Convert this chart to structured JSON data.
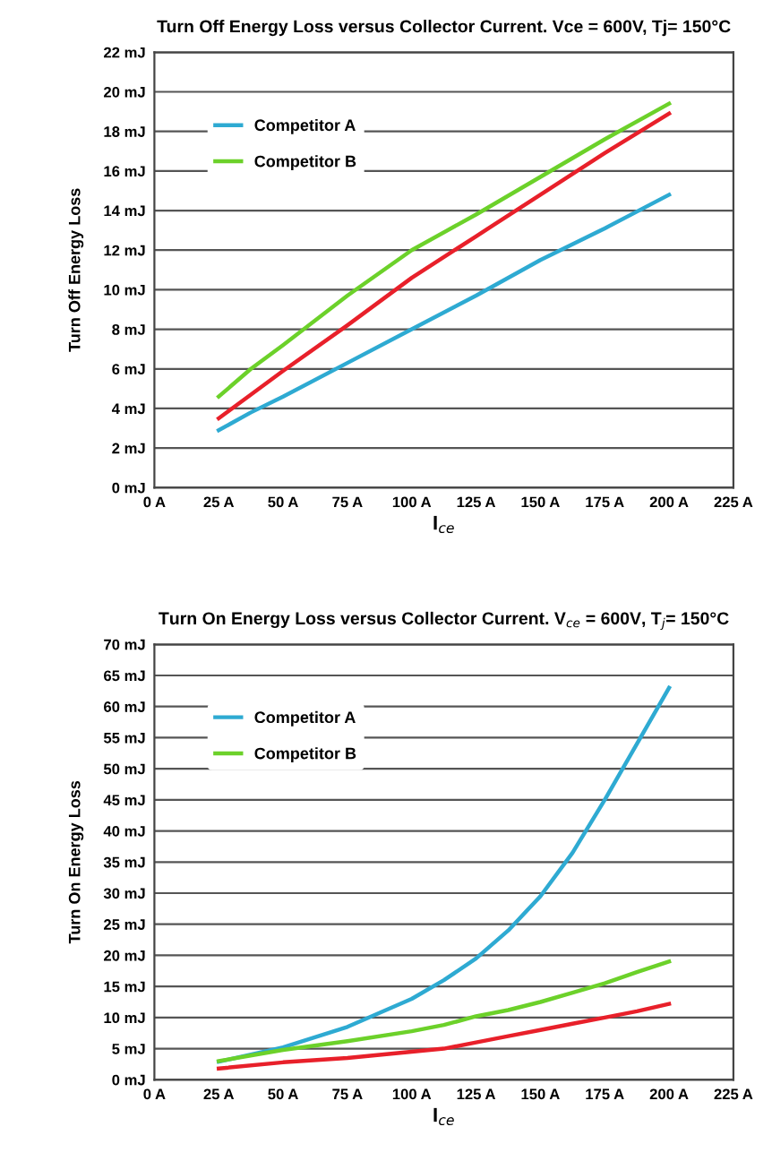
{
  "chart_data": [
    {
      "type": "line",
      "title": "Turn Off Energy Loss versus Collector Current. Vce = 600V, Tj= 150°C",
      "xlabel": "I$_{ce}$",
      "ylabel": "Turn Off Energy Loss",
      "x": [
        25,
        37.5,
        50,
        75,
        100,
        125,
        150,
        175,
        200
      ],
      "series": [
        {
          "color": "#e8202a",
          "values": [
            3.5,
            4.7,
            5.9,
            8.2,
            10.6,
            12.7,
            14.8,
            16.9,
            18.9
          ]
        },
        {
          "name": "Competitor A",
          "color": "#2eaad2",
          "values": [
            2.9,
            3.8,
            4.6,
            6.3,
            8.0,
            9.7,
            11.5,
            13.1,
            14.8
          ]
        },
        {
          "name": "Competitor B",
          "color": "#6cd12a",
          "values": [
            4.6,
            6.0,
            7.2,
            9.7,
            12.0,
            13.8,
            15.7,
            17.6,
            19.4
          ]
        }
      ],
      "xlim": [
        0,
        225
      ],
      "xticks": [
        {
          "value": 0,
          "label": "0 A"
        },
        {
          "value": 25,
          "label": "25 A"
        },
        {
          "value": 50,
          "label": "50 A"
        },
        {
          "value": 75,
          "label": "75 A"
        },
        {
          "value": 100,
          "label": "100 A"
        },
        {
          "value": 125,
          "label": "125 A"
        },
        {
          "value": 150,
          "label": "150 A"
        },
        {
          "value": 175,
          "label": "175 A"
        },
        {
          "value": 200,
          "label": "200 A"
        },
        {
          "value": 225,
          "label": "225 A"
        }
      ],
      "ylim": [
        0,
        22
      ],
      "yticks": [
        {
          "value": 0,
          "label": "0 mJ"
        },
        {
          "value": 2,
          "label": "2 mJ"
        },
        {
          "value": 4,
          "label": "4 mJ"
        },
        {
          "value": 6,
          "label": "6 mJ"
        },
        {
          "value": 8,
          "label": "8 mJ"
        },
        {
          "value": 10,
          "label": "10 mJ"
        },
        {
          "value": 12,
          "label": "12 mJ"
        },
        {
          "value": 14,
          "label": "14 mJ"
        },
        {
          "value": 16,
          "label": "16 mJ"
        },
        {
          "value": 18,
          "label": "18 mJ"
        },
        {
          "value": 20,
          "label": "20 mJ"
        },
        {
          "value": 22,
          "label": "22 mJ"
        }
      ],
      "grid": "y",
      "legend": "top left"
    },
    {
      "type": "line",
      "title": "Turn On Energy Loss versus Collector Current. V$_{ce}$ = 600V, T$_{j}$= 150°C",
      "xlabel": "I$_{ce}$",
      "ylabel": "Turn On Energy Loss",
      "x": [
        25,
        50,
        75,
        100,
        112.5,
        125,
        137.5,
        150,
        162.5,
        175,
        187.5,
        200
      ],
      "series": [
        {
          "color": "#e8202a",
          "values": [
            1.8,
            2.8,
            3.5,
            4.5,
            5.0,
            6.0,
            7.0,
            8.0,
            9.0,
            10.0,
            11.0,
            12.2
          ]
        },
        {
          "name": "Competitor A",
          "color": "#2eaad2",
          "values": [
            2.9,
            5.2,
            8.5,
            13.0,
            16.0,
            19.5,
            24.0,
            29.5,
            36.5,
            45,
            54,
            63
          ]
        },
        {
          "name": "Competitor B",
          "color": "#6cd12a",
          "values": [
            3.0,
            4.8,
            6.2,
            7.8,
            8.8,
            10.2,
            11.2,
            12.5,
            14.0,
            15.5,
            17.3,
            19.0
          ]
        }
      ],
      "xlim": [
        0,
        225
      ],
      "xticks": [
        {
          "value": 0,
          "label": "0 A"
        },
        {
          "value": 25,
          "label": "25 A"
        },
        {
          "value": 50,
          "label": "50 A"
        },
        {
          "value": 75,
          "label": "75 A"
        },
        {
          "value": 100,
          "label": "100 A"
        },
        {
          "value": 125,
          "label": "125 A"
        },
        {
          "value": 150,
          "label": "150 A"
        },
        {
          "value": 175,
          "label": "175 A"
        },
        {
          "value": 200,
          "label": "200 A"
        },
        {
          "value": 225,
          "label": "225 A"
        }
      ],
      "ylim": [
        0,
        70
      ],
      "yticks": [
        {
          "value": 0,
          "label": "0 mJ"
        },
        {
          "value": 5,
          "label": "5 mJ"
        },
        {
          "value": 10,
          "label": "10 mJ"
        },
        {
          "value": 15,
          "label": "15 mJ"
        },
        {
          "value": 20,
          "label": "20 mJ"
        },
        {
          "value": 25,
          "label": "25 mJ"
        },
        {
          "value": 30,
          "label": "30 mJ"
        },
        {
          "value": 35,
          "label": "35 mJ"
        },
        {
          "value": 40,
          "label": "40 mJ"
        },
        {
          "value": 45,
          "label": "45 mJ"
        },
        {
          "value": 50,
          "label": "50 mJ"
        },
        {
          "value": 55,
          "label": "55 mJ"
        },
        {
          "value": 60,
          "label": "60 mJ"
        },
        {
          "value": 65,
          "label": "65 mJ"
        },
        {
          "value": 70,
          "label": "70 mJ"
        }
      ],
      "grid": "y",
      "legend": "top left"
    }
  ]
}
